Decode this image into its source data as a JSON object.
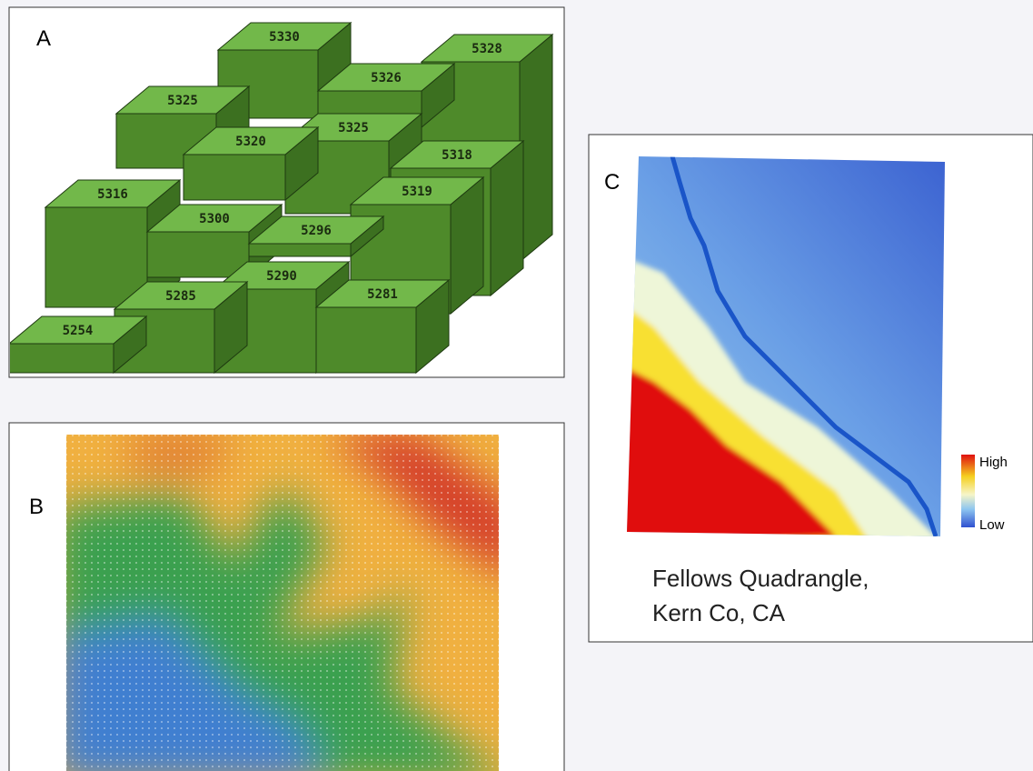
{
  "panels": [
    {
      "label": "A",
      "blocks": [
        5330,
        5328,
        5326,
        5325,
        5325,
        5320,
        5318,
        5319,
        5316,
        5300,
        5296,
        5290,
        5281,
        5285,
        5254
      ]
    },
    {
      "label": "B"
    },
    {
      "label": "C",
      "legend": {
        "high": "High",
        "low": "Low"
      },
      "caption": [
        "Fellows Quadrangle,",
        "Kern Co, CA"
      ]
    }
  ]
}
